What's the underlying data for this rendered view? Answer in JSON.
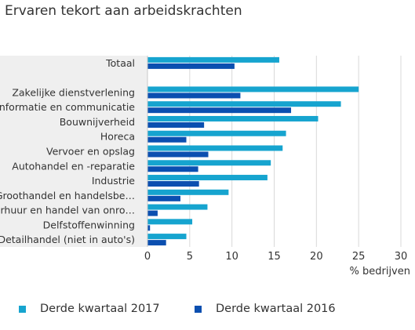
{
  "chart_data": {
    "type": "bar",
    "orientation": "horizontal",
    "title": "Ervaren tekort aan arbeidskrachten",
    "xlabel": "% bedrijven",
    "ylabel": "",
    "xlim": [
      0,
      30
    ],
    "xticks": [
      0,
      5,
      10,
      15,
      20,
      25,
      30
    ],
    "grid": true,
    "legend_position": "bottom",
    "categories": [
      "Totaal",
      "",
      "Zakelijke dienstverlening",
      "Informatie en communicatie",
      "Bouwnijverheid",
      "Horeca",
      "Vervoer en opslag",
      "Autohandel en -reparatie",
      "Industrie",
      "Groothandel en handelsbe…",
      "Verhuur en handel van onro…",
      "Delfstoffenwinning",
      "Detailhandel (niet in auto's)"
    ],
    "series": [
      {
        "name": "Derde kwartaal 2017",
        "color": "#16a4cf",
        "values": [
          15.6,
          null,
          25.0,
          22.9,
          20.2,
          16.4,
          16.0,
          14.6,
          14.2,
          9.6,
          7.1,
          5.3,
          4.6
        ]
      },
      {
        "name": "Derde kwartaal 2016",
        "color": "#0b4fb0",
        "values": [
          10.3,
          null,
          11.0,
          17.0,
          6.7,
          4.6,
          7.2,
          6.0,
          6.1,
          3.9,
          1.2,
          0.3,
          2.2
        ]
      }
    ]
  }
}
